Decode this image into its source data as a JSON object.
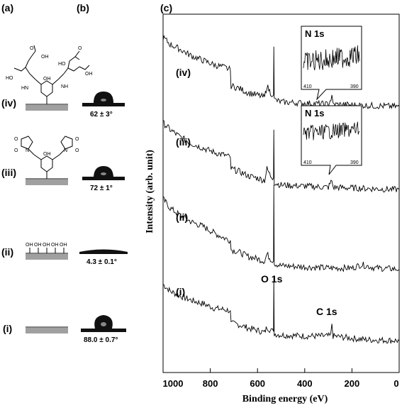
{
  "panels": {
    "a": "(a)",
    "b": "(b)",
    "c": "(c)"
  },
  "rows": [
    {
      "id": "iv",
      "label": "(iv)",
      "angle": "62 ± 3°"
    },
    {
      "id": "iii",
      "label": "(iii)",
      "angle": "72 ± 1°"
    },
    {
      "id": "ii",
      "label": "(ii)",
      "angle": "4.3 ± 0.1°"
    },
    {
      "id": "i",
      "label": "(i)",
      "angle": "88.0 ± 0.7°"
    }
  ],
  "chem": {
    "oh": "OH",
    "ho": "HO",
    "o": "O",
    "n": "N",
    "hn": "HN",
    "nh": "NH",
    "surface_oh": [
      "OH",
      "OH",
      "OH",
      "OH",
      "OH"
    ]
  },
  "chart_data": {
    "type": "line",
    "title": "",
    "xlabel": "Binding energy (eV)",
    "ylabel": "Intensity (arb. unit)",
    "xlim": [
      1000,
      0
    ],
    "x_reversed": true,
    "x_ticks": [
      1000,
      800,
      600,
      400,
      200,
      0
    ],
    "series": [
      {
        "name": "(i)",
        "points": [
          [
            1000,
            2.6
          ],
          [
            970,
            2.3
          ],
          [
            930,
            2.1
          ],
          [
            880,
            1.9
          ],
          [
            830,
            1.75
          ],
          [
            780,
            1.55
          ],
          [
            740,
            1.5
          ],
          [
            715,
            1.45
          ],
          [
            712,
            0.9
          ],
          [
            680,
            0.85
          ],
          [
            640,
            0.7
          ],
          [
            600,
            0.6
          ],
          [
            570,
            0.5
          ],
          [
            560,
            0.75
          ],
          [
            545,
            0.6
          ],
          [
            532,
            0.55
          ],
          [
            531,
            2.9
          ],
          [
            529,
            0.45
          ],
          [
            500,
            0.4
          ],
          [
            400,
            0.35
          ],
          [
            290,
            0.35
          ],
          [
            285,
            0.9
          ],
          [
            280,
            0.35
          ],
          [
            150,
            0.2
          ],
          [
            0,
            0.15
          ]
        ]
      },
      {
        "name": "(ii)",
        "points": [
          [
            1000,
            6.3
          ],
          [
            970,
            5.9
          ],
          [
            930,
            5.6
          ],
          [
            880,
            5.3
          ],
          [
            830,
            5.1
          ],
          [
            780,
            4.8
          ],
          [
            740,
            4.6
          ],
          [
            715,
            4.5
          ],
          [
            712,
            4.1
          ],
          [
            680,
            4.0
          ],
          [
            640,
            3.8
          ],
          [
            600,
            3.7
          ],
          [
            570,
            3.6
          ],
          [
            560,
            3.9
          ],
          [
            545,
            3.7
          ],
          [
            532,
            3.6
          ],
          [
            531,
            6.9
          ],
          [
            529,
            3.5
          ],
          [
            500,
            3.4
          ],
          [
            400,
            3.35
          ],
          [
            300,
            3.3
          ],
          [
            200,
            3.3
          ],
          [
            160,
            3.45
          ],
          [
            100,
            3.3
          ],
          [
            0,
            3.25
          ]
        ]
      },
      {
        "name": "(iii)",
        "points": [
          [
            1000,
            9.6
          ],
          [
            970,
            9.3
          ],
          [
            930,
            9.0
          ],
          [
            880,
            8.7
          ],
          [
            830,
            8.5
          ],
          [
            780,
            8.3
          ],
          [
            740,
            8.2
          ],
          [
            715,
            8.1
          ],
          [
            712,
            7.6
          ],
          [
            680,
            7.5
          ],
          [
            640,
            7.3
          ],
          [
            600,
            7.2
          ],
          [
            570,
            7.1
          ],
          [
            560,
            7.6
          ],
          [
            545,
            7.3
          ],
          [
            532,
            7.2
          ],
          [
            531,
            9.3
          ],
          [
            529,
            7.0
          ],
          [
            500,
            6.9
          ],
          [
            400,
            6.85
          ],
          [
            300,
            6.8
          ],
          [
            285,
            7.1
          ],
          [
            280,
            6.8
          ],
          [
            0,
            6.7
          ]
        ]
      },
      {
        "name": "(iv)",
        "points": [
          [
            1000,
            13.3
          ],
          [
            970,
            13.0
          ],
          [
            930,
            12.8
          ],
          [
            880,
            12.5
          ],
          [
            830,
            12.3
          ],
          [
            780,
            12.1
          ],
          [
            740,
            12.0
          ],
          [
            715,
            11.9
          ],
          [
            712,
            11.2
          ],
          [
            680,
            11.1
          ],
          [
            640,
            10.9
          ],
          [
            600,
            10.8
          ],
          [
            570,
            10.7
          ],
          [
            560,
            11.2
          ],
          [
            545,
            10.9
          ],
          [
            532,
            10.8
          ],
          [
            531,
            12.9
          ],
          [
            529,
            10.6
          ],
          [
            500,
            10.5
          ],
          [
            400,
            10.45
          ],
          [
            300,
            10.4
          ],
          [
            285,
            10.7
          ],
          [
            280,
            10.4
          ],
          [
            0,
            10.3
          ]
        ]
      }
    ],
    "annotations": [
      {
        "text": "O 1s",
        "x": 531
      },
      {
        "text": "C 1s",
        "x": 285
      }
    ],
    "insets": [
      {
        "title": "N 1s",
        "x_ticks": [
          "410",
          "390"
        ],
        "attached_to": "(iv)"
      },
      {
        "title": "N 1s",
        "x_ticks": [
          "410",
          "390"
        ],
        "attached_to": "(iii)"
      }
    ],
    "grid": false,
    "legend": "none"
  }
}
